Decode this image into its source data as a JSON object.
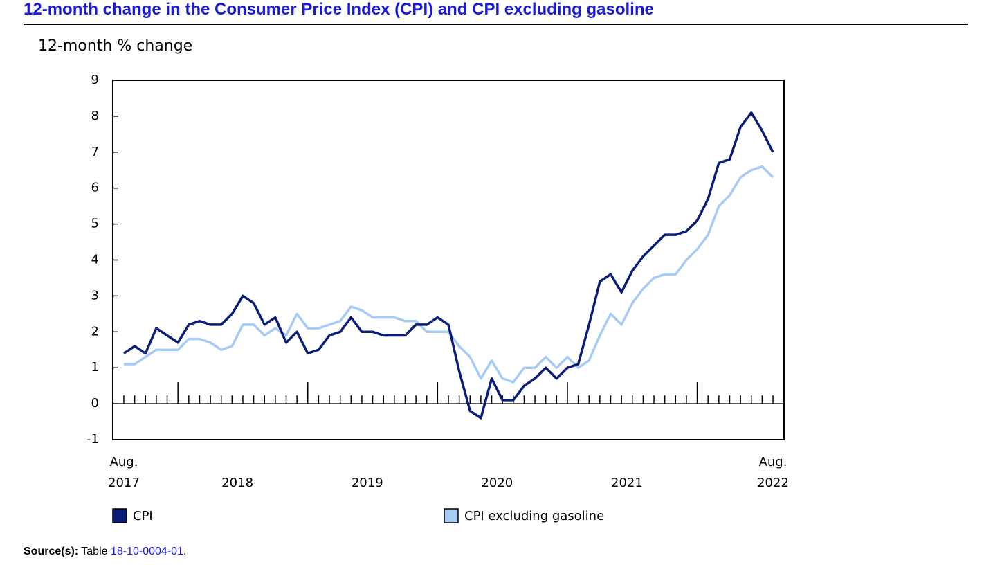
{
  "chart_data": {
    "type": "line",
    "title": "12-month change in the Consumer Price Index (CPI) and CPI excluding gasoline",
    "y_label": "12-month % change",
    "categories": [
      [
        "Aug.",
        "2017"
      ],
      null,
      null,
      null,
      null,
      null,
      null,
      null,
      null,
      null,
      null,
      "2018",
      null,
      null,
      null,
      null,
      null,
      null,
      null,
      null,
      null,
      null,
      null,
      "2019",
      null,
      null,
      null,
      null,
      null,
      null,
      null,
      null,
      null,
      null,
      null,
      "2020",
      null,
      null,
      null,
      null,
      null,
      null,
      null,
      null,
      null,
      null,
      null,
      "2021",
      null,
      null,
      null,
      null,
      null,
      null,
      null,
      null,
      null,
      null,
      null,
      null,
      [
        "Aug.",
        "2022"
      ]
    ],
    "series": [
      {
        "name": "CPI",
        "color": "#0c1d78",
        "values": [
          1.4,
          1.6,
          1.4,
          2.1,
          1.9,
          1.7,
          2.2,
          2.3,
          2.2,
          2.2,
          2.5,
          3.0,
          2.8,
          2.2,
          2.4,
          1.7,
          2.0,
          1.4,
          1.5,
          1.9,
          2.0,
          2.4,
          2.0,
          2.0,
          1.9,
          1.9,
          1.9,
          2.2,
          2.2,
          2.4,
          2.2,
          0.9,
          -0.2,
          -0.4,
          0.7,
          0.1,
          0.1,
          0.5,
          0.7,
          1.0,
          0.7,
          1.0,
          1.1,
          2.2,
          3.4,
          3.6,
          3.1,
          3.7,
          4.1,
          4.4,
          4.7,
          4.7,
          4.8,
          5.1,
          5.7,
          6.7,
          6.8,
          7.7,
          8.1,
          7.6,
          7.0
        ]
      },
      {
        "name": "CPI excluding gasoline",
        "color": "#a6cbf5",
        "values": [
          1.1,
          1.1,
          1.3,
          1.5,
          1.5,
          1.5,
          1.8,
          1.8,
          1.7,
          1.5,
          1.6,
          2.2,
          2.2,
          1.9,
          2.1,
          1.9,
          2.5,
          2.1,
          2.1,
          2.2,
          2.3,
          2.7,
          2.6,
          2.4,
          2.4,
          2.4,
          2.3,
          2.3,
          2.0,
          2.0,
          2.0,
          1.6,
          1.3,
          0.7,
          1.2,
          0.7,
          0.6,
          1.0,
          1.0,
          1.3,
          1.0,
          1.3,
          1.0,
          1.2,
          1.9,
          2.5,
          2.2,
          2.8,
          3.2,
          3.5,
          3.6,
          3.6,
          4.0,
          4.3,
          4.7,
          5.5,
          5.8,
          6.3,
          6.5,
          6.6,
          6.3
        ]
      }
    ],
    "ylim": [
      -1,
      9
    ],
    "yticks": [
      -1,
      0,
      1,
      2,
      3,
      4,
      5,
      6,
      7,
      8,
      9
    ]
  },
  "source": {
    "label": "Source(s):",
    "text": "Table",
    "link": "18-10-0004-01",
    "end": "."
  }
}
